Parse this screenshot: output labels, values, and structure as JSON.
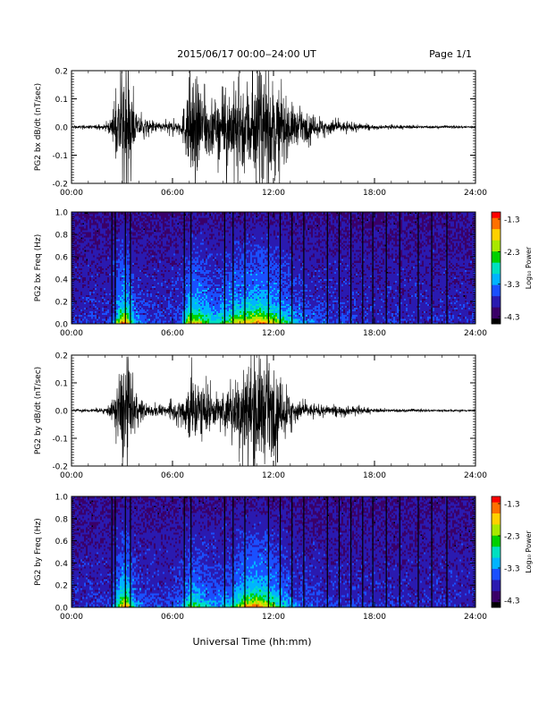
{
  "header": {
    "title": "2015/06/17  00:00‒24:00 UT",
    "page": "Page 1/1"
  },
  "xaxis": {
    "label": "Universal Time (hh:mm)",
    "ticks": [
      "00:00",
      "06:00",
      "12:00",
      "18:00",
      "24:00"
    ],
    "range_hours": [
      0,
      24
    ]
  },
  "colorbar": {
    "label": "Log₁₀ Power",
    "ticks": [
      "-1.3",
      "-2.3",
      "-3.3",
      "-4.3"
    ],
    "range": [
      -4.3,
      -1.3
    ],
    "colors": [
      "#000000",
      "#3a0068",
      "#2a1ab0",
      "#1a50ff",
      "#00b4ff",
      "#00e0c0",
      "#00d000",
      "#a8e800",
      "#ffd000",
      "#ff7000",
      "#ff0000"
    ]
  },
  "chart_data": [
    {
      "type": "line",
      "ylabel": "PG2 bx dB/dt (nT/sec)",
      "ylim": [
        -0.2,
        0.2
      ],
      "yticks": [
        "0.2",
        "0.1",
        "0.0",
        "-0.1",
        "-0.2"
      ],
      "xlim_hours": [
        0,
        24
      ],
      "activity_envelope": [
        {
          "t": 0,
          "amp": 0.005
        },
        {
          "t": 2.0,
          "amp": 0.01
        },
        {
          "t": 2.5,
          "amp": 0.05
        },
        {
          "t": 3.0,
          "amp": 0.25
        },
        {
          "t": 3.3,
          "amp": 0.25
        },
        {
          "t": 3.8,
          "amp": 0.06
        },
        {
          "t": 4.5,
          "amp": 0.03
        },
        {
          "t": 5.5,
          "amp": 0.02
        },
        {
          "t": 6.5,
          "amp": 0.03
        },
        {
          "t": 7.0,
          "amp": 0.22
        },
        {
          "t": 7.6,
          "amp": 0.2
        },
        {
          "t": 8.5,
          "amp": 0.1
        },
        {
          "t": 9.5,
          "amp": 0.18
        },
        {
          "t": 10.5,
          "amp": 0.22
        },
        {
          "t": 11.2,
          "amp": 0.25
        },
        {
          "t": 12.0,
          "amp": 0.2
        },
        {
          "t": 12.6,
          "amp": 0.14
        },
        {
          "t": 13.5,
          "amp": 0.07
        },
        {
          "t": 14.5,
          "amp": 0.04
        },
        {
          "t": 15.5,
          "amp": 0.03
        },
        {
          "t": 16.5,
          "amp": 0.02
        },
        {
          "t": 18.0,
          "amp": 0.008
        },
        {
          "t": 24.0,
          "amp": 0.005
        }
      ]
    },
    {
      "type": "heatmap",
      "ylabel": "PG2 bx Freq (Hz)",
      "ylim": [
        0.0,
        1.0
      ],
      "yticks": [
        "1.0",
        "0.8",
        "0.6",
        "0.4",
        "0.2",
        "0.0"
      ],
      "xlim_hours": [
        0,
        24
      ],
      "zlim": [
        -4.3,
        -1.3
      ],
      "activity_envelope_ref": 0,
      "dropout_lines_hours": [
        2.4,
        2.6,
        3.2,
        3.5,
        6.7,
        7.1,
        9.1,
        9.6,
        10.3,
        11.7,
        12.4,
        13.1,
        13.8,
        15.2,
        15.9,
        16.6,
        17.3,
        17.9,
        18.7,
        19.5,
        20.6,
        21.4,
        22.3
      ]
    },
    {
      "type": "line",
      "ylabel": "PG2 by dB/dt (nT/sec)",
      "ylim": [
        -0.2,
        0.2
      ],
      "yticks": [
        "0.2",
        "0.1",
        "0.0",
        "-0.1",
        "-0.2"
      ],
      "xlim_hours": [
        0,
        24
      ],
      "activity_envelope": [
        {
          "t": 0,
          "amp": 0.004
        },
        {
          "t": 2.0,
          "amp": 0.01
        },
        {
          "t": 2.5,
          "amp": 0.05
        },
        {
          "t": 3.0,
          "amp": 0.22
        },
        {
          "t": 3.3,
          "amp": 0.24
        },
        {
          "t": 3.8,
          "amp": 0.06
        },
        {
          "t": 4.5,
          "amp": 0.03
        },
        {
          "t": 5.5,
          "amp": 0.02
        },
        {
          "t": 6.5,
          "amp": 0.05
        },
        {
          "t": 7.0,
          "amp": 0.16
        },
        {
          "t": 7.5,
          "amp": 0.14
        },
        {
          "t": 8.5,
          "amp": 0.07
        },
        {
          "t": 9.5,
          "amp": 0.1
        },
        {
          "t": 10.3,
          "amp": 0.22
        },
        {
          "t": 11.0,
          "amp": 0.25
        },
        {
          "t": 11.6,
          "amp": 0.22
        },
        {
          "t": 12.4,
          "amp": 0.12
        },
        {
          "t": 13.5,
          "amp": 0.04
        },
        {
          "t": 14.5,
          "amp": 0.025
        },
        {
          "t": 15.5,
          "amp": 0.02
        },
        {
          "t": 16.5,
          "amp": 0.02
        },
        {
          "t": 18.0,
          "amp": 0.008
        },
        {
          "t": 24.0,
          "amp": 0.004
        }
      ]
    },
    {
      "type": "heatmap",
      "ylabel": "PG2 by Freq (Hz)",
      "ylim": [
        0.0,
        1.0
      ],
      "yticks": [
        "1.0",
        "0.8",
        "0.6",
        "0.4",
        "0.2",
        "0.0"
      ],
      "xlim_hours": [
        0,
        24
      ],
      "zlim": [
        -4.3,
        -1.3
      ],
      "activity_envelope_ref": 2,
      "dropout_lines_hours": [
        2.4,
        2.6,
        3.2,
        3.5,
        6.7,
        7.1,
        9.1,
        9.6,
        10.3,
        11.7,
        12.4,
        13.1,
        13.8,
        15.2,
        15.9,
        16.6,
        17.3,
        17.9,
        18.7,
        19.5,
        20.6,
        21.4,
        22.3
      ]
    }
  ]
}
